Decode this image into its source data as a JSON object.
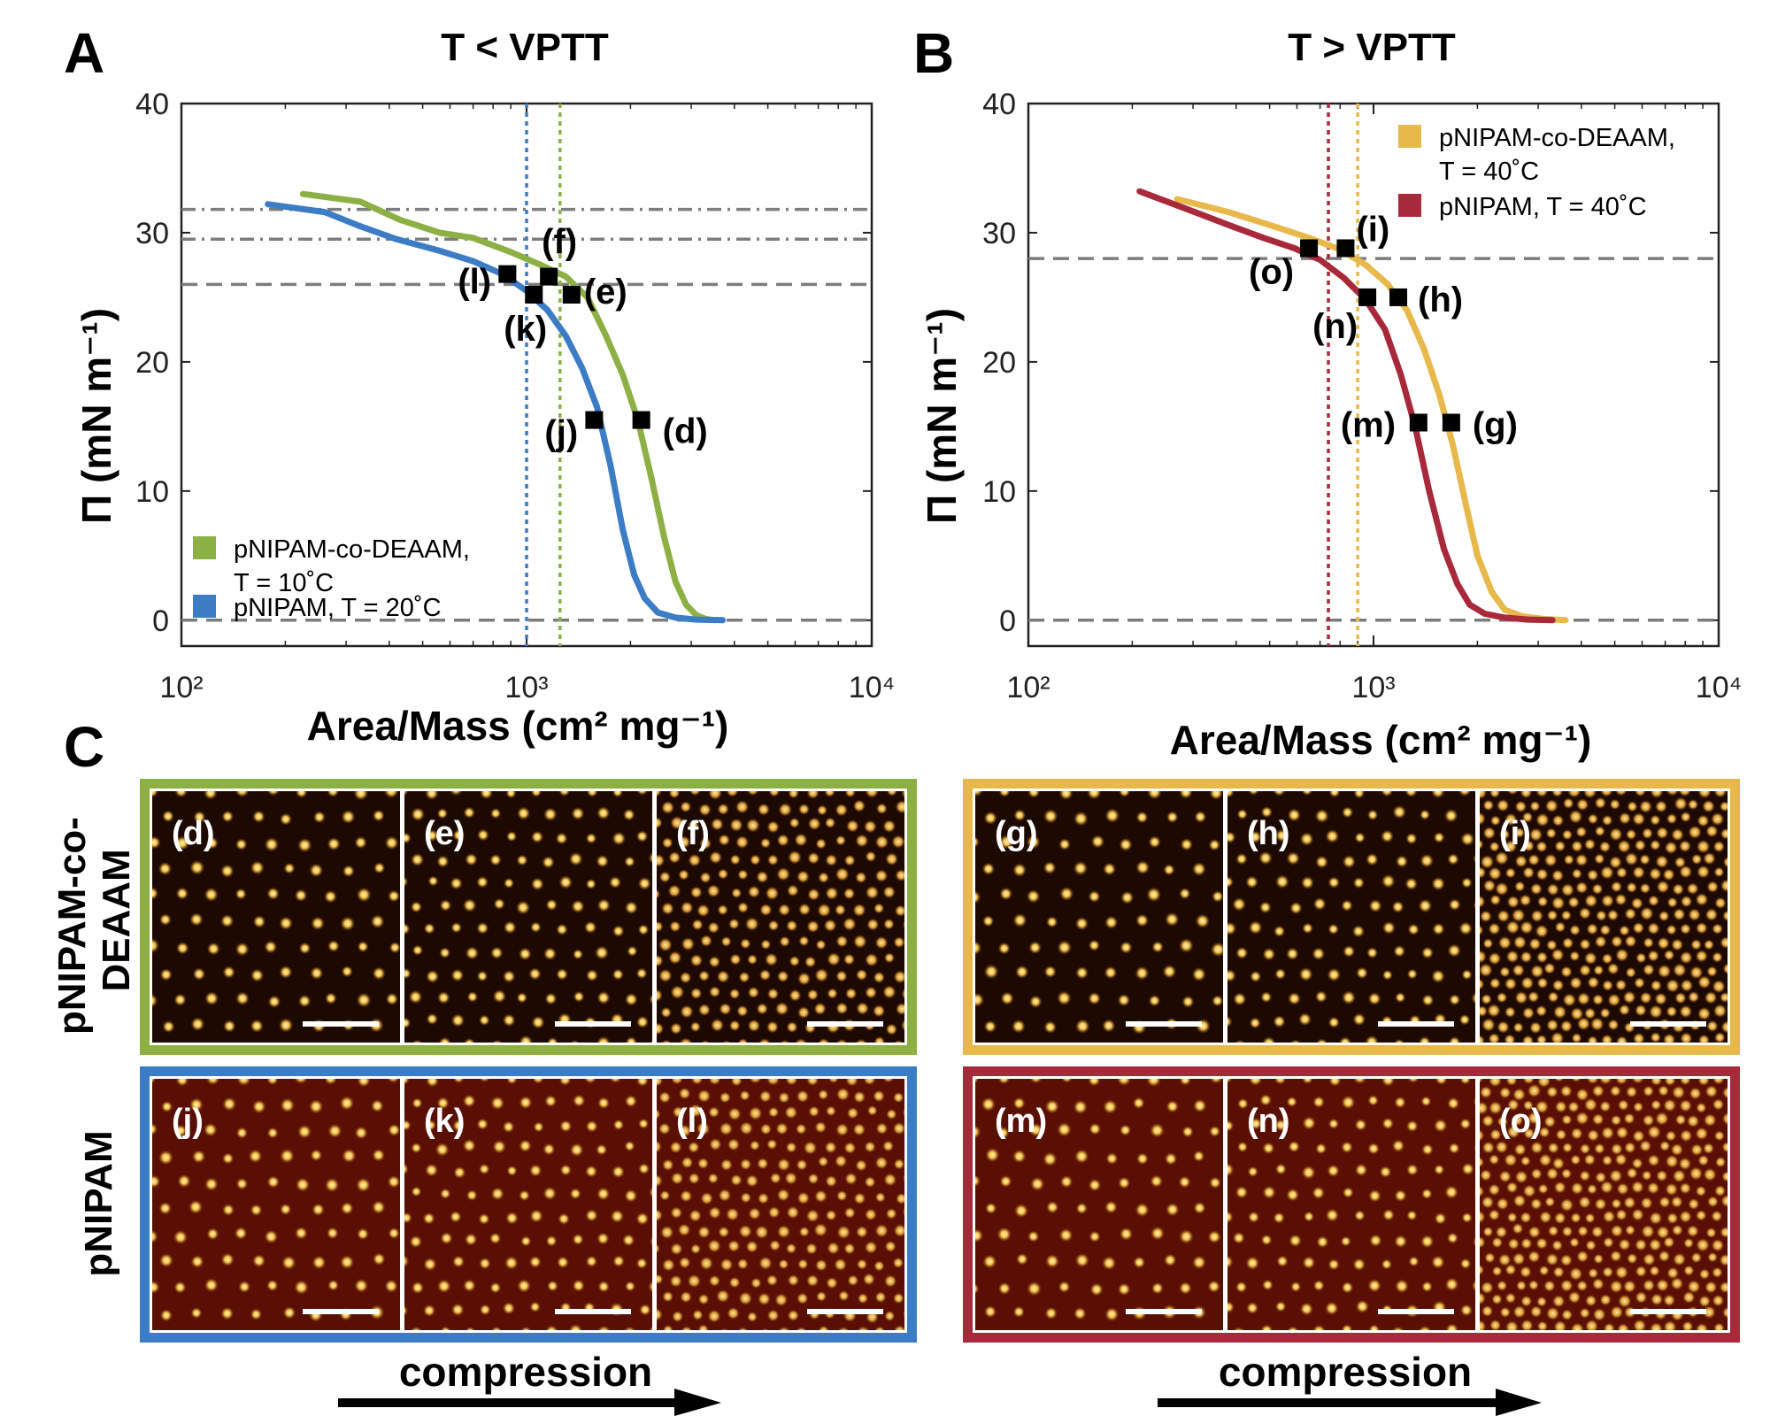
{
  "figure": {
    "panel_labels": [
      "A",
      "B",
      "C"
    ],
    "row_labels": [
      "pNIPAM-co-DEAAM",
      "pNIPAM"
    ],
    "compression_label": "compression",
    "ylabel": "Π (mN m⁻¹)",
    "xlabel": "Area/Mass (cm² mg⁻¹)"
  },
  "chart_data": [
    {
      "type": "line",
      "panel": "A",
      "title": "T < VPTT",
      "xlabel": "Area/Mass (cm² mg⁻¹)",
      "ylabel": "Π (mN m⁻¹)",
      "xscale": "log",
      "xlim": [
        100,
        10000
      ],
      "ylim": [
        -2,
        40
      ],
      "xticks": [
        100,
        1000,
        10000
      ],
      "xtick_labels": [
        "10²",
        "10³",
        "10⁴"
      ],
      "yticks": [
        0,
        10,
        20,
        30,
        40
      ],
      "ytick_labels": [
        "0",
        "10",
        "20",
        "30",
        "40"
      ],
      "legend_position": "bottom-left",
      "series": [
        {
          "name": "pNIPAM-co-DEAAM, T = 10˚C",
          "legend_lines": [
            "pNIPAM-co-DEAAM,",
            "T = 10˚C"
          ],
          "color": "#8db045",
          "x": [
            225,
            330,
            430,
            560,
            700,
            900,
            1100,
            1300,
            1500,
            1700,
            1900,
            2100,
            2300,
            2500,
            2700,
            2900,
            3100,
            3300,
            3500
          ],
          "y": [
            33.0,
            32.4,
            31.0,
            30.0,
            29.6,
            28.5,
            27.5,
            26.6,
            25.0,
            22.0,
            19.0,
            15.5,
            11.0,
            6.5,
            3.0,
            1.2,
            0.4,
            0.1,
            0
          ]
        },
        {
          "name": "pNIPAM, T = 20˚C",
          "legend_lines": [
            "pNIPAM, T = 20˚C"
          ],
          "color": "#3b7cc4",
          "x": [
            178,
            260,
            330,
            420,
            560,
            700,
            850,
            1000,
            1150,
            1300,
            1450,
            1600,
            1750,
            1900,
            2050,
            2200,
            2400,
            2700,
            3100,
            3700
          ],
          "y": [
            32.2,
            31.6,
            30.5,
            29.5,
            28.6,
            27.8,
            26.8,
            25.5,
            24.0,
            22.0,
            19.5,
            16.5,
            12.0,
            7.0,
            3.5,
            1.7,
            0.6,
            0.2,
            0.05,
            0
          ]
        }
      ],
      "markers": [
        {
          "label": "(d)",
          "x": 2150,
          "y": 15.5
        },
        {
          "label": "(e)",
          "x": 1350,
          "y": 25.2
        },
        {
          "label": "(f)",
          "x": 1160,
          "y": 26.6
        },
        {
          "label": "(j)",
          "x": 1570,
          "y": 15.5
        },
        {
          "label": "(k)",
          "x": 1050,
          "y": 25.2
        },
        {
          "label": "(l)",
          "x": 880,
          "y": 26.8
        }
      ],
      "hlines": [
        {
          "y": 26,
          "style": "dashed"
        },
        {
          "y": 29.5,
          "style": "dashdot"
        },
        {
          "y": 31.8,
          "style": "dashdot"
        },
        {
          "y": 0,
          "style": "dashed"
        }
      ],
      "vlines": [
        {
          "x": 1000,
          "color": "#3b7cc4"
        },
        {
          "x": 1250,
          "color": "#8db045"
        }
      ]
    },
    {
      "type": "line",
      "panel": "B",
      "title": "T > VPTT",
      "xlabel": "Area/Mass (cm² mg⁻¹)",
      "ylabel": "Π (mN m⁻¹)",
      "xscale": "log",
      "xlim": [
        100,
        10000
      ],
      "ylim": [
        -2,
        40
      ],
      "xticks": [
        100,
        1000,
        10000
      ],
      "xtick_labels": [
        "10²",
        "10³",
        "10⁴"
      ],
      "yticks": [
        0,
        10,
        20,
        30,
        40
      ],
      "ytick_labels": [
        "0",
        "10",
        "20",
        "30",
        "40"
      ],
      "legend_position": "top-right",
      "series": [
        {
          "name": "pNIPAM-co-DEAAM, T = 40˚C",
          "legend_lines": [
            "pNIPAM-co-DEAAM,",
            "T = 40˚C"
          ],
          "color": "#e8b84a",
          "x": [
            270,
            380,
            500,
            650,
            800,
            950,
            1100,
            1250,
            1400,
            1550,
            1700,
            1850,
            2000,
            2200,
            2400,
            2700,
            3100,
            3600
          ],
          "y": [
            32.6,
            31.6,
            30.6,
            29.6,
            28.7,
            27.5,
            26.0,
            24.0,
            21.0,
            17.5,
            13.5,
            9.0,
            5.0,
            2.2,
            0.8,
            0.3,
            0.1,
            0
          ]
        },
        {
          "name": "pNIPAM, T = 40˚C",
          "legend_lines": [
            "pNIPAM, T = 40˚C"
          ],
          "color": "#a8293a",
          "x": [
            210,
            290,
            380,
            480,
            590,
            700,
            820,
            950,
            1080,
            1200,
            1320,
            1450,
            1600,
            1750,
            1900,
            2100,
            2400,
            2800,
            3300
          ],
          "y": [
            33.2,
            31.8,
            30.6,
            29.6,
            28.8,
            27.9,
            26.5,
            24.8,
            22.5,
            19.0,
            15.0,
            10.0,
            5.5,
            2.8,
            1.2,
            0.5,
            0.2,
            0.05,
            0
          ]
        }
      ],
      "markers": [
        {
          "label": "(g)",
          "x": 1680,
          "y": 15.3
        },
        {
          "label": "(h)",
          "x": 1180,
          "y": 25.0
        },
        {
          "label": "(i)",
          "x": 830,
          "y": 28.8
        },
        {
          "label": "(m)",
          "x": 1350,
          "y": 15.3
        },
        {
          "label": "(n)",
          "x": 960,
          "y": 25.0
        },
        {
          "label": "(o)",
          "x": 650,
          "y": 28.8
        }
      ],
      "hlines": [
        {
          "y": 28,
          "style": "dashed"
        },
        {
          "y": 0,
          "style": "dashed"
        }
      ],
      "vlines": [
        {
          "x": 740,
          "color": "#a8293a"
        },
        {
          "x": 900,
          "color": "#e8b84a"
        }
      ]
    }
  ],
  "micrographs": {
    "top_left": {
      "border": "#8db045",
      "labels": [
        "(d)",
        "(e)",
        "(f)"
      ],
      "tint": "dark"
    },
    "bottom_left": {
      "border": "#3b7cc4",
      "labels": [
        "(j)",
        "(k)",
        "(l)"
      ],
      "tint": "red"
    },
    "top_right": {
      "border": "#e8b84a",
      "labels": [
        "(g)",
        "(h)",
        "(i)"
      ],
      "tint": "dark"
    },
    "bottom_right": {
      "border": "#a8293a",
      "labels": [
        "(m)",
        "(n)",
        "(o)"
      ],
      "tint": "red"
    }
  }
}
